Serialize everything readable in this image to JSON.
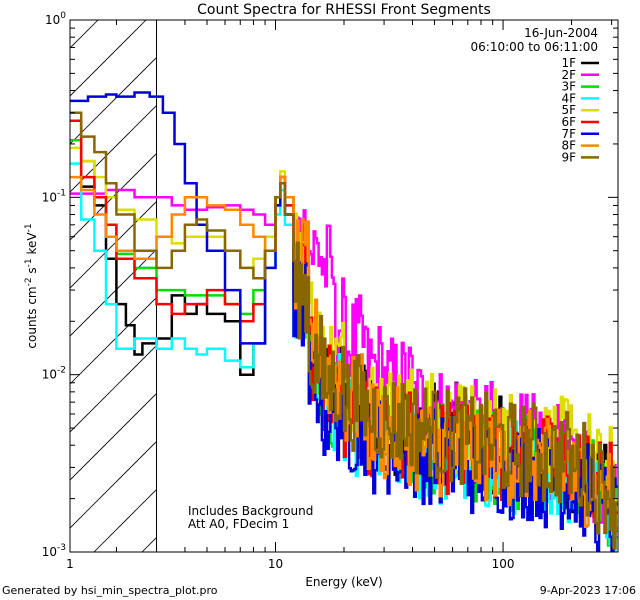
{
  "chart_data": {
    "type": "line",
    "title": "Count Spectra for RHESSI Front Segments",
    "xlabel": "Energy (keV)",
    "ylabel": "counts cm^-2 s^-1 keV^-1",
    "ylabel_parts": {
      "main": "counts cm",
      "exp1": "-2",
      "mid": " s",
      "exp2": "-1",
      "tail": " keV",
      "exp3": "-1"
    },
    "x_scale": "log",
    "y_scale": "log",
    "xlim": [
      1.25,
      320
    ],
    "ylim": [
      0.001,
      1
    ],
    "x_ticks": [
      {
        "value": 1,
        "label": "1"
      },
      {
        "value": 10,
        "label": "10"
      },
      {
        "value": 100,
        "label": "100"
      }
    ],
    "y_ticks": [
      {
        "value": 1,
        "base": "10",
        "exp": "0"
      },
      {
        "value": 0.1,
        "base": "10",
        "exp": "-1"
      },
      {
        "value": 0.01,
        "base": "10",
        "exp": "-2"
      },
      {
        "value": 0.001,
        "base": "10",
        "exp": "-3"
      }
    ],
    "shaded_region": {
      "from": 1.25,
      "to": 3.0,
      "style": "diagonal-hatch"
    },
    "date": "16-Jun-2004",
    "time_range": "06:10:00 to 06:11:00",
    "annotations": [
      "Includes Background",
      "Att A0, FDecim 1"
    ],
    "series": [
      {
        "name": "1F",
        "color": "#000000",
        "points": [
          [
            1.25,
            0.27
          ],
          [
            1.4,
            0.115
          ],
          [
            1.6,
            0.09
          ],
          [
            1.8,
            0.045
          ],
          [
            2.0,
            0.025
          ],
          [
            2.2,
            0.019
          ],
          [
            2.4,
            0.013
          ],
          [
            2.6,
            0.015
          ],
          [
            3.0,
            0.016
          ],
          [
            3.5,
            0.028
          ],
          [
            4.0,
            0.022
          ],
          [
            4.5,
            0.025
          ],
          [
            5.0,
            0.022
          ],
          [
            6.0,
            0.02
          ],
          [
            7.0,
            0.01
          ],
          [
            8.0,
            0.015
          ],
          [
            9.0,
            0.05
          ],
          [
            10.0,
            0.09
          ],
          [
            10.5,
            0.12
          ],
          [
            11.0,
            0.08
          ],
          [
            12.0,
            0.03
          ],
          [
            14,
            0.012
          ],
          [
            16,
            0.009
          ],
          [
            20,
            0.007
          ],
          [
            25,
            0.006
          ],
          [
            30,
            0.005
          ],
          [
            40,
            0.005
          ],
          [
            50,
            0.0048
          ],
          [
            70,
            0.004
          ],
          [
            100,
            0.0037
          ],
          [
            150,
            0.0033
          ],
          [
            200,
            0.0028
          ],
          [
            250,
            0.0022
          ],
          [
            300,
            0.0018
          ]
        ]
      },
      {
        "name": "2F",
        "color": "#ff00ff",
        "points": [
          [
            1.25,
            0.105
          ],
          [
            1.4,
            0.105
          ],
          [
            1.6,
            0.105
          ],
          [
            1.8,
            0.11
          ],
          [
            2.0,
            0.11
          ],
          [
            2.4,
            0.1
          ],
          [
            3.0,
            0.1
          ],
          [
            3.5,
            0.09
          ],
          [
            4.0,
            0.085
          ],
          [
            5.0,
            0.088
          ],
          [
            6.0,
            0.09
          ],
          [
            7.0,
            0.085
          ],
          [
            8.0,
            0.08
          ],
          [
            9.0,
            0.07
          ],
          [
            10.0,
            0.1
          ],
          [
            10.5,
            0.13
          ],
          [
            11.0,
            0.1
          ],
          [
            12.0,
            0.06
          ],
          [
            14,
            0.05
          ],
          [
            16,
            0.04
          ],
          [
            18,
            0.02
          ],
          [
            20,
            0.015
          ],
          [
            25,
            0.011
          ],
          [
            30,
            0.009
          ],
          [
            40,
            0.007
          ],
          [
            50,
            0.006
          ],
          [
            70,
            0.005
          ],
          [
            100,
            0.0042
          ],
          [
            150,
            0.0036
          ],
          [
            200,
            0.003
          ],
          [
            250,
            0.0025
          ],
          [
            300,
            0.002
          ]
        ]
      },
      {
        "name": "3F",
        "color": "#00dd00",
        "points": [
          [
            1.25,
            0.21
          ],
          [
            1.4,
            0.16
          ],
          [
            1.6,
            0.1
          ],
          [
            1.8,
            0.07
          ],
          [
            2.0,
            0.048
          ],
          [
            2.4,
            0.04
          ],
          [
            3.0,
            0.03
          ],
          [
            3.5,
            0.03
          ],
          [
            4.0,
            0.028
          ],
          [
            5.0,
            0.028
          ],
          [
            6.0,
            0.025
          ],
          [
            7.0,
            0.022
          ],
          [
            8.0,
            0.03
          ],
          [
            9.0,
            0.05
          ],
          [
            10.0,
            0.1
          ],
          [
            10.5,
            0.13
          ],
          [
            11.0,
            0.09
          ],
          [
            12.0,
            0.03
          ],
          [
            14,
            0.011
          ],
          [
            16,
            0.007
          ],
          [
            20,
            0.006
          ],
          [
            25,
            0.005
          ],
          [
            30,
            0.0045
          ],
          [
            40,
            0.004
          ],
          [
            50,
            0.0038
          ],
          [
            70,
            0.0035
          ],
          [
            100,
            0.0032
          ],
          [
            150,
            0.003
          ],
          [
            200,
            0.0026
          ],
          [
            250,
            0.002
          ],
          [
            300,
            0.0017
          ]
        ]
      },
      {
        "name": "4F",
        "color": "#00ffff",
        "points": [
          [
            1.25,
            0.155
          ],
          [
            1.4,
            0.075
          ],
          [
            1.6,
            0.05
          ],
          [
            1.8,
            0.025
          ],
          [
            2.0,
            0.014
          ],
          [
            2.4,
            0.016
          ],
          [
            3.0,
            0.014
          ],
          [
            3.5,
            0.016
          ],
          [
            4.0,
            0.014
          ],
          [
            4.5,
            0.013
          ],
          [
            5.0,
            0.014
          ],
          [
            6.0,
            0.012
          ],
          [
            7.0,
            0.011
          ],
          [
            8.0,
            0.015
          ],
          [
            9.0,
            0.04
          ],
          [
            10.0,
            0.08
          ],
          [
            10.5,
            0.11
          ],
          [
            11.0,
            0.07
          ],
          [
            12.0,
            0.025
          ],
          [
            14,
            0.01
          ],
          [
            16,
            0.007
          ],
          [
            20,
            0.005
          ],
          [
            25,
            0.004
          ],
          [
            30,
            0.0038
          ],
          [
            40,
            0.0035
          ],
          [
            50,
            0.0033
          ],
          [
            70,
            0.0031
          ],
          [
            100,
            0.003
          ],
          [
            150,
            0.0027
          ],
          [
            200,
            0.0024
          ],
          [
            250,
            0.002
          ],
          [
            300,
            0.0016
          ]
        ]
      },
      {
        "name": "5F",
        "color": "#dddd00",
        "points": [
          [
            1.25,
            0.19
          ],
          [
            1.4,
            0.16
          ],
          [
            1.6,
            0.13
          ],
          [
            1.8,
            0.1
          ],
          [
            2.0,
            0.085
          ],
          [
            2.4,
            0.075
          ],
          [
            3.0,
            0.06
          ],
          [
            3.5,
            0.055
          ],
          [
            4.0,
            0.06
          ],
          [
            5.0,
            0.06
          ],
          [
            6.0,
            0.05
          ],
          [
            7.0,
            0.04
          ],
          [
            8.0,
            0.045
          ],
          [
            9.0,
            0.06
          ],
          [
            10.0,
            0.1
          ],
          [
            10.5,
            0.14
          ],
          [
            11.0,
            0.1
          ],
          [
            12.0,
            0.05
          ],
          [
            14,
            0.02
          ],
          [
            16,
            0.012
          ],
          [
            20,
            0.009
          ],
          [
            25,
            0.007
          ],
          [
            30,
            0.006
          ],
          [
            40,
            0.0055
          ],
          [
            50,
            0.005
          ],
          [
            70,
            0.0048
          ],
          [
            100,
            0.0045
          ],
          [
            150,
            0.004
          ],
          [
            200,
            0.0034
          ],
          [
            250,
            0.0028
          ],
          [
            300,
            0.0022
          ]
        ]
      },
      {
        "name": "6F",
        "color": "#ff0000",
        "points": [
          [
            1.25,
            0.27
          ],
          [
            1.4,
            0.13
          ],
          [
            1.6,
            0.1
          ],
          [
            1.8,
            0.07
          ],
          [
            2.0,
            0.045
          ],
          [
            2.4,
            0.035
          ],
          [
            3.0,
            0.025
          ],
          [
            3.5,
            0.022
          ],
          [
            4.0,
            0.025
          ],
          [
            5.0,
            0.03
          ],
          [
            6.0,
            0.025
          ],
          [
            7.0,
            0.02
          ],
          [
            8.0,
            0.025
          ],
          [
            9.0,
            0.05
          ],
          [
            10.0,
            0.1
          ],
          [
            10.5,
            0.13
          ],
          [
            11.0,
            0.09
          ],
          [
            12.0,
            0.03
          ],
          [
            14,
            0.012
          ],
          [
            16,
            0.008
          ],
          [
            20,
            0.006
          ],
          [
            25,
            0.005
          ],
          [
            30,
            0.0045
          ],
          [
            40,
            0.0042
          ],
          [
            50,
            0.004
          ],
          [
            70,
            0.0037
          ],
          [
            100,
            0.0035
          ],
          [
            150,
            0.0032
          ],
          [
            200,
            0.0028
          ],
          [
            250,
            0.0023
          ],
          [
            300,
            0.0018
          ]
        ]
      },
      {
        "name": "7F",
        "color": "#0000dd",
        "points": [
          [
            1.25,
            0.35
          ],
          [
            1.5,
            0.37
          ],
          [
            1.8,
            0.38
          ],
          [
            2.0,
            0.37
          ],
          [
            2.4,
            0.39
          ],
          [
            2.8,
            0.37
          ],
          [
            3.2,
            0.3
          ],
          [
            3.6,
            0.2
          ],
          [
            4.0,
            0.12
          ],
          [
            4.5,
            0.07
          ],
          [
            5.0,
            0.05
          ],
          [
            6.0,
            0.03
          ],
          [
            7.0,
            0.015
          ],
          [
            8.0,
            0.015
          ],
          [
            9.0,
            0.04
          ],
          [
            10.0,
            0.09
          ],
          [
            10.5,
            0.12
          ],
          [
            11.0,
            0.08
          ],
          [
            12.0,
            0.025
          ],
          [
            14,
            0.009
          ],
          [
            16,
            0.006
          ],
          [
            20,
            0.005
          ],
          [
            25,
            0.004
          ],
          [
            30,
            0.0038
          ],
          [
            40,
            0.0035
          ],
          [
            50,
            0.0033
          ],
          [
            70,
            0.003
          ],
          [
            100,
            0.0028
          ],
          [
            150,
            0.0025
          ],
          [
            200,
            0.0022
          ],
          [
            250,
            0.0018
          ],
          [
            300,
            0.0015
          ]
        ]
      },
      {
        "name": "8F",
        "color": "#ff8800",
        "points": [
          [
            1.25,
            0.13
          ],
          [
            1.4,
            0.11
          ],
          [
            1.6,
            0.08
          ],
          [
            1.8,
            0.06
          ],
          [
            2.0,
            0.05
          ],
          [
            2.4,
            0.045
          ],
          [
            3.0,
            0.06
          ],
          [
            3.5,
            0.08
          ],
          [
            4.0,
            0.1
          ],
          [
            4.5,
            0.1
          ],
          [
            5.0,
            0.09
          ],
          [
            6.0,
            0.085
          ],
          [
            7.0,
            0.07
          ],
          [
            8.0,
            0.06
          ],
          [
            9.0,
            0.05
          ],
          [
            10.0,
            0.1
          ],
          [
            10.5,
            0.13
          ],
          [
            11.0,
            0.1
          ],
          [
            12.0,
            0.04
          ],
          [
            14,
            0.015
          ],
          [
            16,
            0.01
          ],
          [
            20,
            0.007
          ],
          [
            25,
            0.005
          ],
          [
            30,
            0.0045
          ],
          [
            40,
            0.004
          ],
          [
            50,
            0.0038
          ],
          [
            70,
            0.0036
          ],
          [
            100,
            0.0034
          ],
          [
            150,
            0.003
          ],
          [
            200,
            0.0026
          ],
          [
            250,
            0.0021
          ],
          [
            300,
            0.0017
          ]
        ]
      },
      {
        "name": "9F",
        "color": "#886600",
        "points": [
          [
            1.25,
            0.3
          ],
          [
            1.4,
            0.22
          ],
          [
            1.6,
            0.18
          ],
          [
            1.8,
            0.12
          ],
          [
            2.0,
            0.08
          ],
          [
            2.4,
            0.05
          ],
          [
            3.0,
            0.04
          ],
          [
            3.5,
            0.05
          ],
          [
            4.0,
            0.07
          ],
          [
            4.5,
            0.075
          ],
          [
            5.0,
            0.065
          ],
          [
            6.0,
            0.05
          ],
          [
            7.0,
            0.04
          ],
          [
            8.0,
            0.035
          ],
          [
            9.0,
            0.05
          ],
          [
            10.0,
            0.1
          ],
          [
            10.5,
            0.12
          ],
          [
            11.0,
            0.08
          ],
          [
            12.0,
            0.03
          ],
          [
            14,
            0.012
          ],
          [
            16,
            0.009
          ],
          [
            20,
            0.007
          ],
          [
            25,
            0.006
          ],
          [
            30,
            0.0055
          ],
          [
            40,
            0.005
          ],
          [
            50,
            0.0045
          ],
          [
            70,
            0.0042
          ],
          [
            100,
            0.0038
          ],
          [
            150,
            0.0034
          ],
          [
            200,
            0.003
          ],
          [
            250,
            0.0024
          ],
          [
            300,
            0.0019
          ]
        ]
      }
    ]
  },
  "footer": {
    "left": "Generated by hsi_min_spectra_plot.pro",
    "right": "9-Apr-2023 17:06"
  }
}
